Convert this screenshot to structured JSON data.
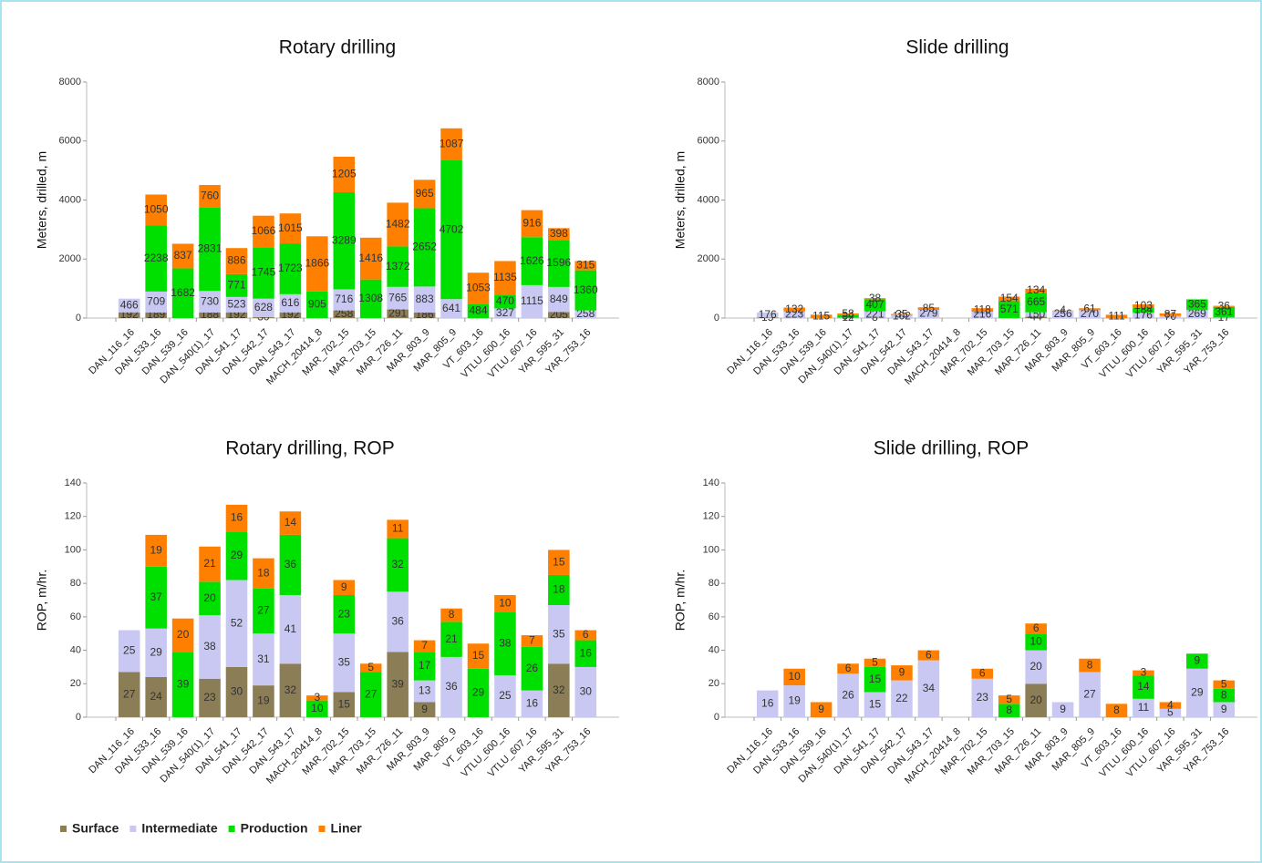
{
  "chart_data": [
    {
      "type": "bar",
      "stacked": true,
      "title": "Rotary drilling",
      "y_label": "Meters, drilled, m",
      "categories": [
        "DAN_116_16",
        "DAN_533_16",
        "DAN_539_16",
        "DAN_540(1)_17",
        "DAN_541_17",
        "DAN_542_17",
        "DAN_543_17",
        "MACH_20414_8",
        "MAR_702_15",
        "MAR_703_15",
        "MAR_726_11",
        "MAR_803_9",
        "MAR_805_9",
        "VT_603_16",
        "VTLU_600_16",
        "VTLU_607_16",
        "YAR_595_31",
        "YAR_753_16"
      ],
      "ylim": [
        0,
        8000
      ],
      "yticks": [
        0,
        2000,
        4000,
        6000,
        8000
      ],
      "series": [
        {
          "name": "Surface",
          "color": "#8b7d55",
          "values": [
            192,
            189,
            null,
            188,
            192,
            30,
            192,
            null,
            258,
            null,
            291,
            186,
            null,
            null,
            null,
            null,
            205,
            null
          ]
        },
        {
          "name": "Intermediate",
          "color": "#c8c8f2",
          "values": [
            466,
            709,
            null,
            730,
            523,
            628,
            616,
            null,
            716,
            null,
            765,
            883,
            641,
            null,
            327,
            1115,
            849,
            258
          ]
        },
        {
          "name": "Production",
          "color": "#00e000",
          "values": [
            null,
            2238,
            1682,
            2831,
            771,
            1745,
            1723,
            905,
            3289,
            1308,
            1372,
            2652,
            4702,
            484,
            470,
            1626,
            1596,
            1360
          ]
        },
        {
          "name": "Liner",
          "color": "#ff8000",
          "values": [
            null,
            1050,
            837,
            760,
            886,
            1066,
            1015,
            1866,
            1205,
            1416,
            1482,
            965,
            1087,
            1053,
            1135,
            916,
            398,
            315
          ]
        }
      ]
    },
    {
      "type": "bar",
      "stacked": true,
      "title": "Slide drilling",
      "y_label": "Meters, drilled, m",
      "categories": [
        "DAN_116_16",
        "DAN_533_16",
        "DAN_539_16",
        "DAN_540(1)_17",
        "DAN_541_17",
        "DAN_542_17",
        "DAN_543_17",
        "MACH_20414_8",
        "MAR_702_15",
        "MAR_703_15",
        "MAR_726_11",
        "MAR_803_9",
        "MAR_805_9",
        "VT_603_16",
        "VTLU_600_16",
        "VTLU_607_16",
        "YAR_595_31",
        "YAR_753_16"
      ],
      "ylim": [
        0,
        8000
      ],
      "yticks": [
        0,
        2000,
        4000,
        6000,
        8000
      ],
      "series": [
        {
          "name": "Surface",
          "color": "#8b7d55",
          "values": [
            15,
            null,
            null,
            null,
            8,
            null,
            null,
            null,
            null,
            null,
            44,
            null,
            null,
            null,
            null,
            null,
            null,
            null
          ]
        },
        {
          "name": "Intermediate",
          "color": "#c8c8f2",
          "values": [
            176,
            223,
            null,
            12,
            221,
            102,
            279,
            null,
            216,
            null,
            150,
            256,
            270,
            null,
            176,
            70,
            269,
            17
          ]
        },
        {
          "name": "Production",
          "color": "#00e000",
          "values": [
            null,
            null,
            null,
            84,
            407,
            null,
            null,
            null,
            null,
            571,
            665,
            null,
            null,
            null,
            184,
            null,
            365,
            361
          ]
        },
        {
          "name": "Liner",
          "color": "#ff8000",
          "values": [
            null,
            132,
            115,
            58,
            38,
            35,
            85,
            null,
            118,
            154,
            134,
            4,
            61,
            111,
            103,
            87,
            null,
            36
          ]
        }
      ]
    },
    {
      "type": "bar",
      "stacked": true,
      "title": "Rotary drilling, ROP",
      "y_label": "ROP, m/hr.",
      "categories": [
        "DAN_116_16",
        "DAN_533_16",
        "DAN_539_16",
        "DAN_540(1)_17",
        "DAN_541_17",
        "DAN_542_17",
        "DAN_543_17",
        "MACH_20414_8",
        "MAR_702_15",
        "MAR_703_15",
        "MAR_726_11",
        "MAR_803_9",
        "MAR_805_9",
        "VT_603_16",
        "VTLU_600_16",
        "VTLU_607_16",
        "YAR_595_31",
        "YAR_753_16"
      ],
      "ylim": [
        0,
        140
      ],
      "yticks": [
        0,
        20,
        40,
        60,
        80,
        100,
        120,
        140
      ],
      "series": [
        {
          "name": "Surface",
          "color": "#8b7d55",
          "values": [
            27,
            24,
            null,
            23,
            30,
            19,
            32,
            null,
            15,
            null,
            39,
            9,
            null,
            null,
            null,
            null,
            32,
            null
          ]
        },
        {
          "name": "Intermediate",
          "color": "#c8c8f2",
          "values": [
            25,
            29,
            null,
            38,
            52,
            31,
            41,
            null,
            35,
            null,
            36,
            13,
            36,
            null,
            25,
            16,
            35,
            30
          ]
        },
        {
          "name": "Production",
          "color": "#00e000",
          "values": [
            null,
            37,
            39,
            20,
            29,
            27,
            36,
            10,
            23,
            27,
            32,
            17,
            21,
            29,
            38,
            26,
            18,
            16
          ]
        },
        {
          "name": "Liner",
          "color": "#ff8000",
          "values": [
            null,
            19,
            20,
            21,
            16,
            18,
            14,
            3,
            9,
            5,
            11,
            7,
            8,
            15,
            10,
            7,
            15,
            6
          ]
        }
      ]
    },
    {
      "type": "bar",
      "stacked": true,
      "title": "Slide drilling, ROP",
      "y_label": "ROP, m/hr.",
      "categories": [
        "DAN_116_16",
        "DAN_533_16",
        "DAN_539_16",
        "DAN_540(1)_17",
        "DAN_541_17",
        "DAN_542_17",
        "DAN_543_17",
        "MACH_20414_8",
        "MAR_702_15",
        "MAR_703_15",
        "MAR_726_11",
        "MAR_803_9",
        "MAR_805_9",
        "VT_603_16",
        "VTLU_600_16",
        "VTLU_607_16",
        "YAR_595_31",
        "YAR_753_16"
      ],
      "ylim": [
        0,
        140
      ],
      "yticks": [
        0,
        20,
        40,
        60,
        80,
        100,
        120,
        140
      ],
      "series": [
        {
          "name": "Surface",
          "color": "#8b7d55",
          "values": [
            null,
            null,
            null,
            null,
            null,
            null,
            null,
            null,
            null,
            null,
            20,
            null,
            null,
            null,
            null,
            null,
            null,
            null
          ]
        },
        {
          "name": "Intermediate",
          "color": "#c8c8f2",
          "values": [
            16,
            19,
            null,
            26,
            15,
            22,
            34,
            null,
            23,
            null,
            20,
            9,
            27,
            null,
            11,
            5,
            29,
            9
          ]
        },
        {
          "name": "Production",
          "color": "#00e000",
          "values": [
            null,
            null,
            null,
            null,
            15,
            null,
            null,
            null,
            null,
            8,
            10,
            null,
            null,
            null,
            14,
            null,
            9,
            8
          ]
        },
        {
          "name": "Liner",
          "color": "#ff8000",
          "values": [
            null,
            10,
            9,
            6,
            5,
            9,
            6,
            null,
            6,
            5,
            6,
            null,
            8,
            8,
            3,
            4,
            null,
            5
          ]
        }
      ]
    }
  ]
}
